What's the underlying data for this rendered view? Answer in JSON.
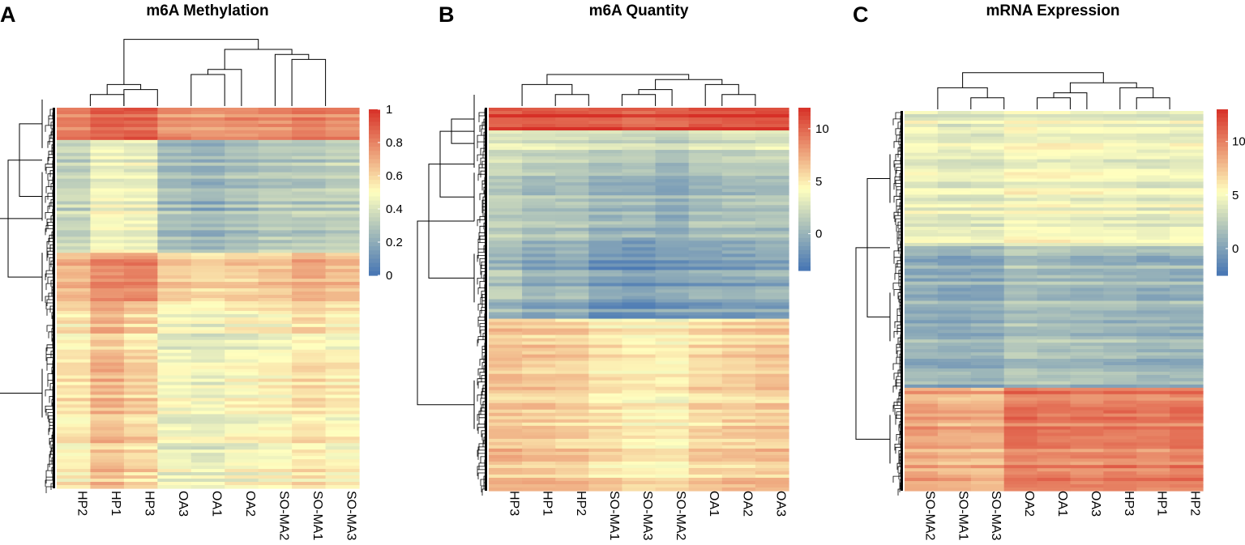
{
  "chart_data": [
    {
      "type": "heatmap",
      "panel": "A",
      "title": "m6A Methylation",
      "columns": [
        "HP2",
        "HP1",
        "HP3",
        "OA3",
        "OA1",
        "OA2",
        "SO-MA2",
        "SO-MA1",
        "SO-MA3"
      ],
      "color_scale": {
        "min": 0,
        "max": 1,
        "ticks": [
          0,
          0.2,
          0.4,
          0.6,
          0.8,
          1
        ],
        "tick_labels": [
          "0",
          "0.2",
          "0.4",
          "0.6",
          "0.8",
          "1"
        ],
        "low_color": "#4575b4",
        "mid_color": "#ffffbf",
        "high_color": "#d73027"
      },
      "row_blocks": [
        {
          "rows": 0.085,
          "values": [
            0.8,
            0.87,
            0.88,
            0.76,
            0.74,
            0.76,
            0.76,
            0.8,
            0.78
          ]
        },
        {
          "rows": 0.3,
          "values": [
            0.34,
            0.46,
            0.44,
            0.26,
            0.22,
            0.26,
            0.3,
            0.3,
            0.32
          ]
        },
        {
          "rows": 0.13,
          "values": [
            0.68,
            0.78,
            0.8,
            0.62,
            0.6,
            0.62,
            0.64,
            0.7,
            0.66
          ]
        },
        {
          "rows": 0.485,
          "values": [
            0.54,
            0.66,
            0.6,
            0.46,
            0.44,
            0.48,
            0.5,
            0.56,
            0.52
          ]
        }
      ]
    },
    {
      "type": "heatmap",
      "panel": "B",
      "title": "m6A Quantity",
      "columns": [
        "HP3",
        "HP1",
        "HP2",
        "SO-MA1",
        "SO-MA3",
        "SO-MA2",
        "OA1",
        "OA2",
        "OA3"
      ],
      "color_scale": {
        "min": -3.5,
        "max": 12,
        "ticks": [
          0,
          5,
          10
        ],
        "tick_labels": [
          "0",
          "5",
          "10"
        ],
        "low_color": "#4575b4",
        "mid_color": "#ffffbf",
        "high_color": "#d73027"
      },
      "row_blocks": [
        {
          "rows": 0.06,
          "values": [
            11.0,
            11.2,
            11.0,
            10.8,
            10.6,
            10.6,
            11.2,
            11.3,
            11.4
          ]
        },
        {
          "rows": 0.07,
          "values": [
            3.0,
            2.5,
            2.6,
            2.0,
            2.2,
            1.6,
            2.4,
            2.6,
            2.8
          ]
        },
        {
          "rows": 0.21,
          "values": [
            1.6,
            0.9,
            1.0,
            0.3,
            0.4,
            -0.4,
            0.6,
            0.8,
            0.9
          ]
        },
        {
          "rows": 0.21,
          "values": [
            0.6,
            -0.6,
            -0.2,
            -1.4,
            -1.8,
            -1.2,
            -1.0,
            -0.8,
            -0.6
          ]
        },
        {
          "rows": 0.45,
          "values": [
            6.4,
            6.2,
            6.0,
            5.2,
            4.8,
            4.6,
            5.6,
            6.0,
            6.2
          ]
        }
      ]
    },
    {
      "type": "heatmap",
      "panel": "C",
      "title": "mRNA Expression",
      "columns": [
        "SO-MA2",
        "SO-MA1",
        "SO-MA3",
        "OA2",
        "OA1",
        "OA3",
        "HP3",
        "HP1",
        "HP2"
      ],
      "color_scale": {
        "min": -2.5,
        "max": 13,
        "ticks": [
          0,
          5,
          10
        ],
        "tick_labels": [
          "0",
          "5",
          "10"
        ],
        "low_color": "#4575b4",
        "mid_color": "#ffffbf",
        "high_color": "#d73027"
      },
      "row_blocks": [
        {
          "rows": 0.36,
          "values": [
            4.4,
            4.0,
            4.0,
            4.8,
            4.8,
            4.6,
            4.4,
            4.2,
            4.4
          ]
        },
        {
          "rows": 0.37,
          "values": [
            1.0,
            0.8,
            0.8,
            2.0,
            1.8,
            1.6,
            1.4,
            1.2,
            1.2
          ]
        },
        {
          "rows": 0.27,
          "values": [
            8.6,
            8.2,
            8.0,
            10.2,
            10.0,
            9.8,
            10.0,
            9.8,
            10.2
          ]
        }
      ]
    }
  ]
}
